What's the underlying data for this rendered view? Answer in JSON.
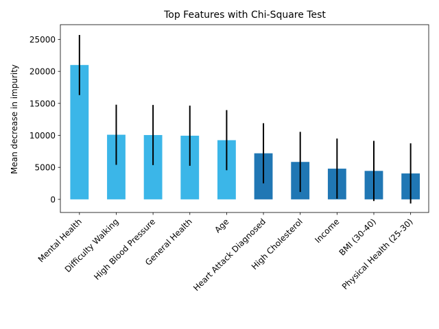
{
  "chart_data": {
    "type": "bar",
    "title": "Top Features with Chi-Square Test",
    "xlabel": "",
    "ylabel": "Mean decrease in impurity",
    "categories": [
      "Mental Health",
      "Difficulty Walking",
      "High Blood Pressure",
      "General Health",
      "Age",
      "Heart Attack Diagnosed",
      "High Cholesterol",
      "Income",
      "BMI (30-40)",
      "Physical Health (25-30)"
    ],
    "values": [
      21000,
      10100,
      10050,
      9950,
      9250,
      7200,
      5850,
      4800,
      4450,
      4050
    ],
    "errors": [
      4700,
      4700,
      4700,
      4700,
      4700,
      4700,
      4700,
      4700,
      4700,
      4700
    ],
    "bar_colors": [
      "#3bb6e8",
      "#3bb6e8",
      "#3bb6e8",
      "#3bb6e8",
      "#3bb6e8",
      "#2077b4",
      "#2077b4",
      "#2077b4",
      "#2077b4",
      "#2077b4"
    ],
    "error_color": "#000000",
    "ylim": [
      -2050,
      27300
    ],
    "yticks": [
      0,
      5000,
      10000,
      15000,
      20000,
      25000
    ],
    "grid": false,
    "legend": "none"
  }
}
